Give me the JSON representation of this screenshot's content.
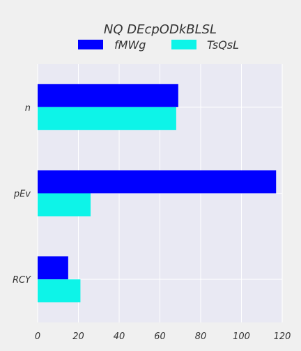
{
  "chart_data": {
    "type": "bar",
    "orientation": "horizontal",
    "title": "NQ DEcpODkBLSL",
    "categories": [
      "n",
      "pEv",
      "RCY"
    ],
    "series": [
      {
        "name": "fMWg",
        "values": [
          69,
          117,
          15
        ]
      },
      {
        "name": "TsQsL",
        "values": [
          68,
          26,
          21
        ]
      }
    ],
    "xlim": [
      0,
      120
    ],
    "xticks": [
      0,
      20,
      40,
      60,
      80,
      100,
      120
    ],
    "grid": true,
    "legend_position": "top-center"
  },
  "colors": {
    "background": "#f0f0f0",
    "plot_area": "#e9e9f3",
    "grid": "#ffffff",
    "fMWg": "#0000ff",
    "TsQsL": "#0df4e8",
    "text": "#333333"
  }
}
